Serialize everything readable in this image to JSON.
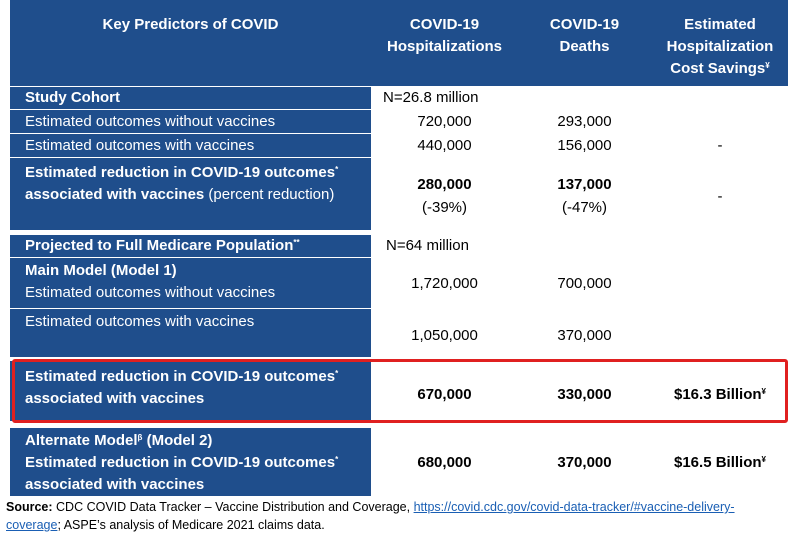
{
  "header": {
    "col0": "Key Predictors of COVID",
    "col1_line1": "COVID-19",
    "col1_line2": "Hospitalizations",
    "col2_line1": "COVID-19",
    "col2_line2": "Deaths",
    "col3_line1": "Estimated",
    "col3_line2": "Hospitalization",
    "col3_line3": "Cost Savings",
    "col3_mark": "¥"
  },
  "study_cohort": {
    "label": "Study Cohort",
    "n": "N=26.8 million",
    "rows": [
      {
        "label": "Estimated outcomes without vaccines",
        "hosp": "720,000",
        "deaths": "293,000"
      },
      {
        "label": "Estimated outcomes with vaccines",
        "hosp": "440,000",
        "deaths": "156,000",
        "cost": "-"
      }
    ],
    "reduction": {
      "label_bold_line1": "Estimated reduction in COVID-19 outcomes",
      "mark": "*",
      "label_bold_line2": "associated with vaccines",
      "label_normal": " (percent reduction)",
      "hosp": "280,000",
      "hosp_pct": "(-39%)",
      "deaths": "137,000",
      "deaths_pct": "(-47%)",
      "cost": "-"
    }
  },
  "projected": {
    "label": "Projected to Full Medicare Population",
    "mark": "**",
    "n": "N=64 million",
    "main_model": {
      "title": "Main Model (Model 1)",
      "without_label": "Estimated outcomes without vaccines",
      "without_hosp": "1,720,000",
      "without_deaths": "700,000",
      "with_label": "Estimated outcomes with vaccines",
      "with_hosp": "1,050,000",
      "with_deaths": "370,000"
    },
    "main_reduction": {
      "line1": "Estimated reduction in COVID-19 outcomes",
      "mark": "*",
      "line2": "associated with vaccines",
      "hosp": "670,000",
      "deaths": "330,000",
      "cost": "$16.3 Billion",
      "cost_mark": "¥"
    },
    "alternate_model": {
      "title": "Alternate Model",
      "title_mark": "β",
      "title_suffix": " (Model 2)",
      "line1": "Estimated reduction in COVID-19 outcomes",
      "mark": "*",
      "line2": "associated with vaccines",
      "hosp": "680,000",
      "deaths": "370,000",
      "cost": "$16.5 Billion",
      "cost_mark": "¥"
    }
  },
  "source": {
    "label": "Source:",
    "text1": " CDC COVID Data Tracker – Vaccine Distribution and Coverage, ",
    "link_part1": "https://covid.cdc.gov/covid-data-tracker/#vaccine-delivery-",
    "link_part2": "coverage",
    "text2": "; ASPE’s analysis of Medicare 2021 claims data."
  },
  "colors": {
    "header_blue": "#1f4e8c",
    "highlight_red": "#e02020",
    "link_blue": "#1a5fb4"
  }
}
